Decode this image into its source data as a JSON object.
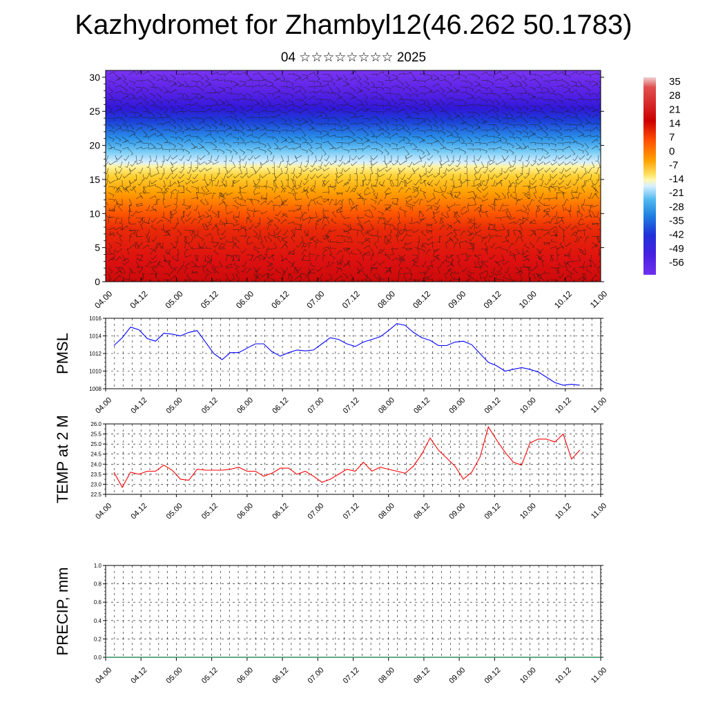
{
  "title": "Kazhydromet for Zhambyl12(46.262 50.1783)",
  "subtitle": "04 ☆☆☆☆☆☆☆☆ 2025",
  "chart_data": [
    {
      "type": "heatmap",
      "title": "",
      "ylim": [
        0,
        31
      ],
      "yticks": [
        "0",
        "5",
        "10",
        "15",
        "20",
        "25",
        "30"
      ],
      "xticks": [
        "04.00",
        "04.12",
        "05.00",
        "05.12",
        "06.00",
        "06.12",
        "07.00",
        "07.12",
        "08.00",
        "08.12",
        "09.00",
        "09.12",
        "10.00",
        "10.12",
        "11.00"
      ],
      "colorbar": {
        "labels": [
          "35",
          "28",
          "21",
          "14",
          "7",
          "0",
          "-7",
          "-14",
          "-21",
          "-28",
          "-35",
          "-42",
          "-49",
          "-56"
        ],
        "range": [
          -60,
          38
        ]
      },
      "temperature_profile": [
        {
          "level": 0,
          "value": 26
        },
        {
          "level": 5,
          "value": 22
        },
        {
          "level": 10,
          "value": 18
        },
        {
          "level": 15,
          "value": 2
        },
        {
          "level": 17,
          "value": -10
        },
        {
          "level": 20,
          "value": -30
        },
        {
          "level": 22,
          "value": -40
        },
        {
          "level": 25,
          "value": -55
        },
        {
          "level": 31,
          "value": -58
        }
      ],
      "overlay": "wind barbs"
    },
    {
      "type": "line",
      "ylabel": "PMSL",
      "ylim": [
        1008,
        1016
      ],
      "yticks": [
        "1008",
        "1010",
        "1012",
        "1014",
        "1016"
      ],
      "xticks": [
        "04.00",
        "04.12",
        "05.00",
        "05.12",
        "06.00",
        "06.12",
        "07.00",
        "07.12",
        "08.00",
        "08.12",
        "09.00",
        "09.12",
        "10.00",
        "10.12",
        "11.00"
      ],
      "color": "#0000ff",
      "x_step_hours": 3,
      "values": [
        1012.9,
        1013.8,
        1015.0,
        1014.7,
        1013.7,
        1013.4,
        1014.3,
        1014.2,
        1014.0,
        1014.4,
        1014.6,
        1013.3,
        1012.0,
        1011.3,
        1012.1,
        1012.1,
        1012.6,
        1013.1,
        1013.1,
        1012.2,
        1011.7,
        1012.1,
        1012.4,
        1012.3,
        1012.4,
        1013.1,
        1013.8,
        1013.6,
        1013.1,
        1012.8,
        1013.3,
        1013.6,
        1013.9,
        1014.6,
        1015.4,
        1015.2,
        1014.4,
        1013.8,
        1013.5,
        1012.9,
        1012.9,
        1013.3,
        1013.4,
        1013.0,
        1012.0,
        1011.0,
        1010.6,
        1010.0,
        1010.2,
        1010.4,
        1010.2,
        1009.9,
        1009.3,
        1008.7,
        1008.4,
        1008.5,
        1008.4
      ]
    },
    {
      "type": "line",
      "ylabel": "TEMP at 2 M",
      "ylim": [
        22.5,
        26.0
      ],
      "yticks": [
        "22.5",
        "23.0",
        "23.5",
        "24.0",
        "24.5",
        "25.0",
        "25.5",
        "26.0"
      ],
      "xticks": [
        "04.00",
        "04.12",
        "05.00",
        "05.12",
        "06.00",
        "06.12",
        "07.00",
        "07.12",
        "08.00",
        "08.12",
        "09.00",
        "09.12",
        "10.00",
        "10.12",
        "11.00"
      ],
      "color": "#ff0000",
      "x_step_hours": 3,
      "values": [
        23.6,
        22.85,
        23.6,
        23.5,
        23.65,
        23.65,
        23.95,
        23.7,
        23.25,
        23.2,
        23.75,
        23.7,
        23.7,
        23.7,
        23.75,
        23.85,
        23.65,
        23.65,
        23.4,
        23.55,
        23.8,
        23.8,
        23.5,
        23.65,
        23.4,
        23.1,
        23.25,
        23.5,
        23.75,
        23.65,
        24.1,
        23.65,
        23.85,
        23.75,
        23.65,
        23.55,
        23.9,
        24.5,
        25.3,
        24.7,
        24.3,
        23.9,
        23.25,
        23.6,
        24.35,
        25.85,
        25.2,
        24.6,
        24.1,
        23.95,
        25.05,
        25.25,
        25.25,
        25.1,
        25.5,
        24.25,
        24.7
      ]
    },
    {
      "type": "line",
      "ylabel": "PRECIP, mm",
      "ylim": [
        0.0,
        1.0
      ],
      "yticks": [
        "0.0",
        "0.2",
        "0.4",
        "0.6",
        "0.8",
        "1.0"
      ],
      "xticks": [
        "04.00",
        "04.12",
        "05.00",
        "05.12",
        "06.00",
        "06.12",
        "07.00",
        "07.12",
        "08.00",
        "08.12",
        "09.00",
        "09.12",
        "10.00",
        "10.12",
        "11.00"
      ],
      "color": "#2e8b57",
      "values": [
        0,
        0,
        0,
        0,
        0,
        0,
        0,
        0,
        0,
        0,
        0,
        0,
        0,
        0,
        0
      ]
    }
  ]
}
